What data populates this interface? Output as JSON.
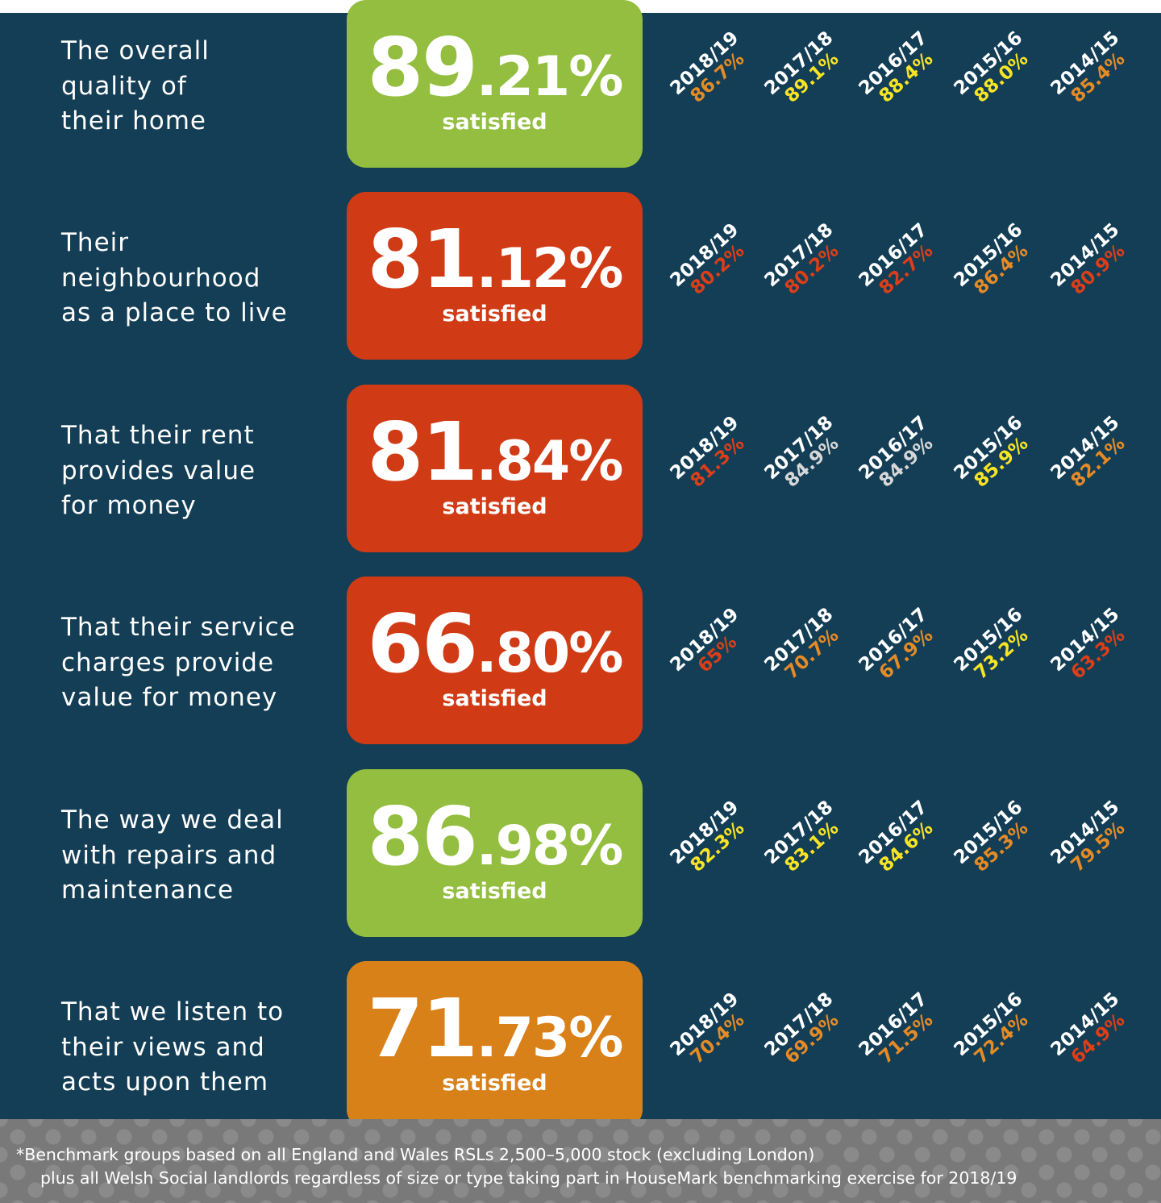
{
  "colors": {
    "background": "#133e56",
    "green": "#93be3f",
    "red": "#d03b15",
    "orange": "#d98119",
    "bench_orange": "#e58b26",
    "bench_yellow": "#f7e425",
    "bench_red": "#de3e17",
    "bench_grey": "#d7d7d7"
  },
  "rows": [
    {
      "label": "The overall\nquality of\ntheir home",
      "score_int": "89",
      "score_dec": ".21%",
      "caption": "satisfied",
      "box_color": "#93be3f",
      "benchmarks": [
        {
          "year": "2018/19",
          "value": "86.7%",
          "color": "#e58b26"
        },
        {
          "year": "2017/18",
          "value": "89.1%",
          "color": "#f7e425"
        },
        {
          "year": "2016/17",
          "value": "88.4%",
          "color": "#f7e425"
        },
        {
          "year": "2015/16",
          "value": "88.0%",
          "color": "#f7e425"
        },
        {
          "year": "2014/15",
          "value": "85.4%",
          "color": "#e58b26"
        }
      ]
    },
    {
      "label": "Their\nneighbourhood\nas a place to live",
      "score_int": "81",
      "score_dec": ".12%",
      "caption": "satisfied",
      "box_color": "#d03b15",
      "benchmarks": [
        {
          "year": "2018/19",
          "value": "80.2%",
          "color": "#de3e17"
        },
        {
          "year": "2017/18",
          "value": "80.2%",
          "color": "#de3e17"
        },
        {
          "year": "2016/17",
          "value": "82.7%",
          "color": "#de3e17"
        },
        {
          "year": "2015/16",
          "value": "86.4%",
          "color": "#e58b26"
        },
        {
          "year": "2014/15",
          "value": "80.9%",
          "color": "#de3e17"
        }
      ]
    },
    {
      "label": "That their rent\nprovides value\nfor money",
      "score_int": "81",
      "score_dec": ".84%",
      "caption": "satisfied",
      "box_color": "#d03b15",
      "benchmarks": [
        {
          "year": "2018/19",
          "value": "81.3%",
          "color": "#de3e17"
        },
        {
          "year": "2017/18",
          "value": "84.9%",
          "color": "#d7d7d7"
        },
        {
          "year": "2016/17",
          "value": "84.9%",
          "color": "#d7d7d7"
        },
        {
          "year": "2015/16",
          "value": "85.9%",
          "color": "#f7e425"
        },
        {
          "year": "2014/15",
          "value": "82.1%",
          "color": "#e58b26"
        }
      ]
    },
    {
      "label": "That their service\ncharges provide\nvalue for money",
      "score_int": "66",
      "score_dec": ".80%",
      "caption": "satisfied",
      "box_color": "#d03b15",
      "benchmarks": [
        {
          "year": "2018/19",
          "value": "65%",
          "color": "#de3e17"
        },
        {
          "year": "2017/18",
          "value": "70.7%",
          "color": "#e58b26"
        },
        {
          "year": "2016/17",
          "value": "67.9%",
          "color": "#e58b26"
        },
        {
          "year": "2015/16",
          "value": "73.2%",
          "color": "#f7e425"
        },
        {
          "year": "2014/15",
          "value": "63.3%",
          "color": "#de3e17"
        }
      ]
    },
    {
      "label": "The way we deal\nwith repairs and\nmaintenance",
      "score_int": "86",
      "score_dec": ".98%",
      "caption": "satisfied",
      "box_color": "#93be3f",
      "benchmarks": [
        {
          "year": "2018/19",
          "value": "82.3%",
          "color": "#f7e425"
        },
        {
          "year": "2017/18",
          "value": "83.1%",
          "color": "#f7e425"
        },
        {
          "year": "2016/17",
          "value": "84.6%",
          "color": "#f7e425"
        },
        {
          "year": "2015/16",
          "value": "85.3%",
          "color": "#e58b26"
        },
        {
          "year": "2014/15",
          "value": "79.5%",
          "color": "#e58b26"
        }
      ]
    },
    {
      "label": "That we listen to\ntheir views and\nacts upon them",
      "score_int": "71",
      "score_dec": ".73%",
      "caption": "satisfied",
      "box_color": "#d98119",
      "benchmarks": [
        {
          "year": "2018/19",
          "value": "70.4%",
          "color": "#e58b26"
        },
        {
          "year": "2017/18",
          "value": "69.9%",
          "color": "#e58b26"
        },
        {
          "year": "2016/17",
          "value": "71.5%",
          "color": "#e58b26"
        },
        {
          "year": "2015/16",
          "value": "72.4%",
          "color": "#e58b26"
        },
        {
          "year": "2014/15",
          "value": "64.9%",
          "color": "#de3e17"
        }
      ]
    }
  ],
  "footnote": {
    "line1": "*Benchmark groups based on all England and Wales RSLs 2,500–5,000 stock (excluding London)",
    "line2": "plus all Welsh Social landlords regardless of size or type taking part in HouseMark benchmarking exercise for 2018/19"
  }
}
